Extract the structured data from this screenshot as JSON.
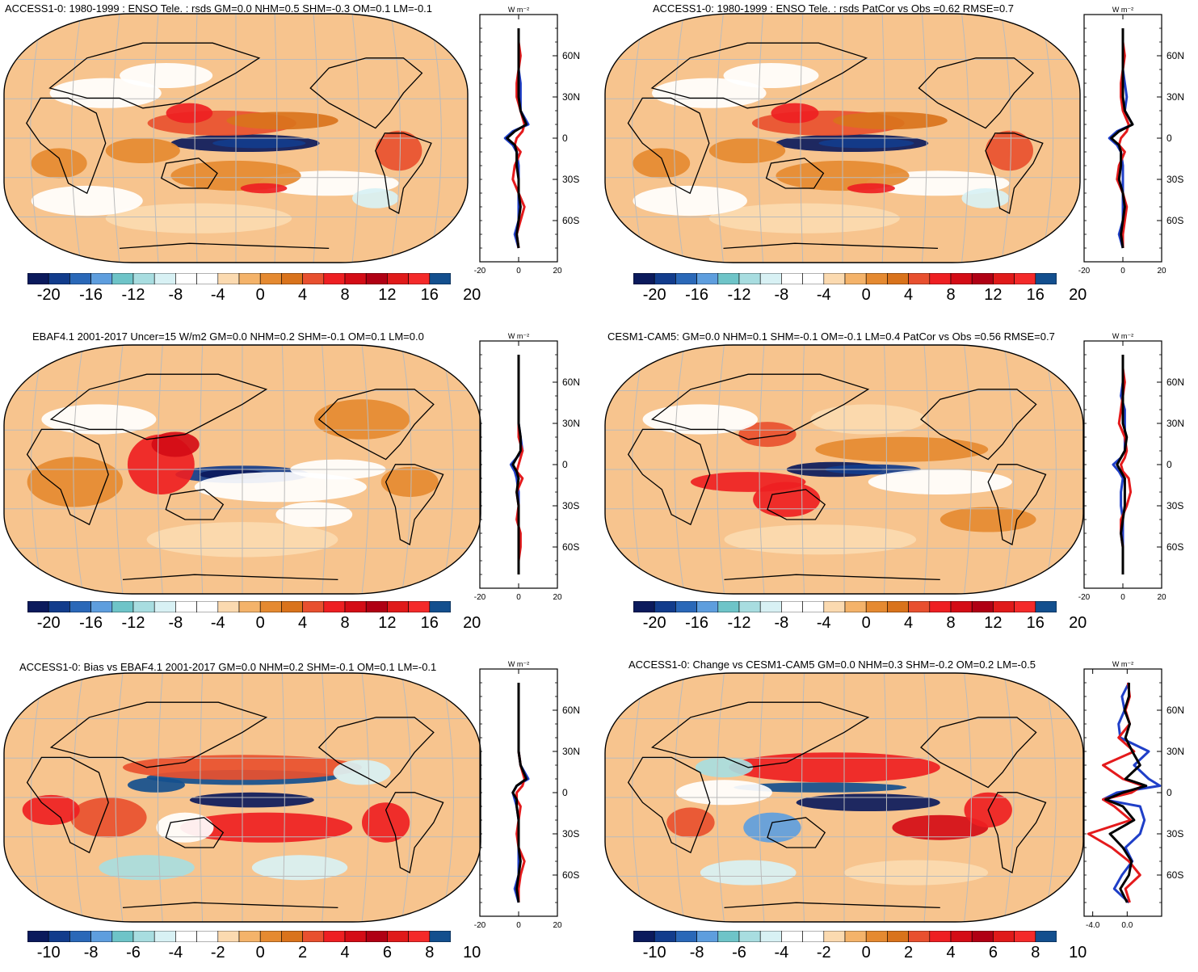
{
  "colors": {
    "scale": [
      "#0b1a5c",
      "#123c8c",
      "#2a68b8",
      "#5e9ede",
      "#6ec4c8",
      "#a8dde0",
      "#d8f1f4",
      "#ffffff",
      "#ffffff",
      "#fbdab0",
      "#f4b36a",
      "#e58a31",
      "#d9731c",
      "#e8502f",
      "#ee1f22",
      "#d40c16",
      "#b00014",
      "#e01a1a",
      "#f42a2a",
      "#134f8e"
    ],
    "land_outline": "#000000",
    "grid": "#bbbbbb",
    "line_black": "#000000",
    "line_red": "#e41a1c",
    "line_blue": "#1f3fc8"
  },
  "panels": [
    {
      "id": "p1",
      "title": "ACCESS1-0: 1980-1999 : ENSO Tele. : rsds GM=0.0 NHM=0.5 SHM=-0.3 OM=0.1 LM=-0.1",
      "cbar_labels": [
        "-20",
        "-16",
        "-12",
        "-8",
        "-4",
        "0",
        "4",
        "8",
        "12",
        "16",
        "20"
      ],
      "profile": {
        "units": "W m⁻²",
        "x_ticks": [
          "-20",
          "0",
          "20"
        ],
        "y_ticks": [
          "60N",
          "30N",
          "0",
          "30S",
          "60S"
        ],
        "xmin": -20,
        "xmax": 20,
        "lat": [
          -80,
          -70,
          -60,
          -50,
          -40,
          -30,
          -20,
          -10,
          -5,
          0,
          5,
          10,
          20,
          30,
          40,
          50,
          60,
          70,
          80
        ],
        "black": [
          0,
          -1,
          0,
          1,
          0,
          0,
          -1,
          -1,
          -2,
          -6,
          -2,
          4,
          1,
          0,
          0,
          0,
          0,
          0,
          0
        ],
        "red": [
          0,
          -1,
          1,
          3,
          0,
          -3,
          -2,
          1,
          -2,
          -1,
          2,
          3,
          1,
          -1,
          -1,
          0,
          1,
          0,
          0
        ],
        "blue": [
          0,
          -2,
          0,
          0,
          0,
          0,
          0,
          -1,
          -3,
          -7,
          -3,
          5,
          1,
          1,
          1,
          0,
          0,
          0,
          0
        ]
      }
    },
    {
      "id": "p2",
      "title": "ACCESS1-0: 1980-1999 : ENSO Tele. : rsds PatCor vs Obs =0.62 RMSE=0.7",
      "cbar_labels": [
        "-20",
        "-16",
        "-12",
        "-8",
        "-4",
        "0",
        "4",
        "8",
        "12",
        "16",
        "20"
      ],
      "profile": {
        "units": "W m⁻²",
        "x_ticks": [
          "-20",
          "0",
          "20"
        ],
        "y_ticks": [
          "60N",
          "30N",
          "0",
          "30S",
          "60S"
        ],
        "xmin": -20,
        "xmax": 20,
        "lat": [
          -80,
          -70,
          -60,
          -50,
          -40,
          -30,
          -20,
          -10,
          -5,
          0,
          5,
          10,
          20,
          30,
          40,
          50,
          60,
          70,
          80
        ],
        "black": [
          0,
          -1,
          0,
          1,
          0,
          -2,
          -1,
          -1,
          -2,
          -6,
          -2,
          5,
          1,
          0,
          0,
          0,
          0,
          0,
          0
        ],
        "red": [
          0,
          0,
          1,
          2,
          0,
          -3,
          -2,
          1,
          -2,
          -1,
          2,
          3,
          0,
          -1,
          -1,
          0,
          1,
          0,
          0
        ],
        "blue": [
          0,
          -2,
          0,
          0,
          0,
          0,
          0,
          -1,
          -3,
          -7,
          -3,
          5,
          1,
          2,
          1,
          0,
          0,
          0,
          0
        ]
      }
    },
    {
      "id": "p3",
      "title": "EBAF4.1 2001-2017 Uncer=15 W/m2 GM=0.0 NHM=0.2 SHM=-0.1 OM=0.1 LM=0.0",
      "cbar_labels": [
        "-20",
        "-16",
        "-12",
        "-8",
        "-4",
        "0",
        "4",
        "8",
        "12",
        "16",
        "20"
      ],
      "profile": {
        "units": "W m⁻²",
        "x_ticks": [
          "-20",
          "0",
          "20"
        ],
        "y_ticks": [
          "60N",
          "30N",
          "0",
          "30S",
          "60S"
        ],
        "xmin": -20,
        "xmax": 20,
        "lat": [
          -80,
          -70,
          -60,
          -50,
          -40,
          -30,
          -20,
          -10,
          -5,
          0,
          5,
          10,
          20,
          30,
          40,
          50,
          60,
          70,
          80
        ],
        "black": [
          0,
          0,
          0,
          0,
          0,
          0,
          -1,
          0,
          -1,
          -3,
          -1,
          1,
          1,
          0,
          0,
          0,
          0,
          0,
          0
        ],
        "red": [
          0,
          0,
          1,
          1,
          -1,
          0,
          -1,
          2,
          -1,
          0,
          1,
          2,
          0,
          0,
          0,
          0,
          0,
          0,
          0
        ],
        "blue": [
          0,
          0,
          0,
          0,
          0,
          0,
          0,
          -1,
          -2,
          -4,
          -1,
          2,
          1,
          0,
          0,
          0,
          0,
          0,
          0
        ]
      }
    },
    {
      "id": "p4",
      "title": "CESM1-CAM5: GM=0.0 NHM=0.1 SHM=-0.1 OM=-0.1 LM=0.4 PatCor vs Obs =0.56 RMSE=0.7",
      "cbar_labels": [
        "-20",
        "-16",
        "-12",
        "-8",
        "-4",
        "0",
        "4",
        "8",
        "12",
        "16",
        "20"
      ],
      "profile": {
        "units": "W m⁻²",
        "x_ticks": [
          "-20",
          "0",
          "20"
        ],
        "y_ticks": [
          "60N",
          "30N",
          "0",
          "30S",
          "60S"
        ],
        "xmin": -20,
        "xmax": 20,
        "lat": [
          -80,
          -70,
          -60,
          -50,
          -40,
          -30,
          -20,
          -10,
          -5,
          0,
          5,
          10,
          20,
          30,
          40,
          50,
          60,
          70,
          80
        ],
        "black": [
          0,
          0,
          0,
          -1,
          0,
          1,
          1,
          1,
          -1,
          -3,
          -1,
          1,
          2,
          0,
          0,
          0,
          0,
          0,
          0
        ],
        "red": [
          0,
          0,
          0,
          -1,
          -1,
          2,
          4,
          3,
          0,
          -1,
          1,
          2,
          1,
          -2,
          -1,
          0,
          1,
          0,
          0
        ],
        "blue": [
          0,
          0,
          0,
          0,
          0,
          -1,
          -1,
          0,
          -2,
          -5,
          -1,
          1,
          1,
          1,
          1,
          -1,
          0,
          0,
          0
        ]
      }
    },
    {
      "id": "p5",
      "title": "ACCESS1-0: Bias vs EBAF4.1 2001-2017 GM=0.0 NHM=0.2 SHM=-0.1 OM=0.1 LM=-0.1",
      "cbar_labels": [
        "-10",
        "-8",
        "-6",
        "-4",
        "-2",
        "0",
        "2",
        "4",
        "6",
        "8",
        "10"
      ],
      "profile": {
        "units": "W m⁻²",
        "x_ticks": [
          "-20",
          "0",
          "20"
        ],
        "y_ticks": [
          "60N",
          "30N",
          "0",
          "30S",
          "60S"
        ],
        "xmin": -20,
        "xmax": 20,
        "lat": [
          -80,
          -70,
          -60,
          -50,
          -40,
          -30,
          -20,
          -10,
          -5,
          0,
          5,
          10,
          20,
          30,
          40,
          50,
          60,
          70,
          80
        ],
        "black": [
          0,
          -1,
          0,
          1,
          0,
          0,
          0,
          -1,
          -1,
          -3,
          -1,
          4,
          1,
          0,
          0,
          0,
          0,
          0,
          0
        ],
        "red": [
          0,
          0,
          1,
          3,
          0,
          -1,
          0,
          1,
          -1,
          -1,
          2,
          3,
          1,
          0,
          0,
          0,
          0,
          0,
          0
        ],
        "blue": [
          0,
          -2,
          0,
          0,
          0,
          0,
          0,
          -1,
          -2,
          -3,
          -1,
          5,
          1,
          0,
          0,
          0,
          0,
          0,
          0
        ]
      }
    },
    {
      "id": "p6",
      "title": "ACCESS1-0: Change vs CESM1-CAM5 GM=0.0 NHM=0.3 SHM=-0.2 OM=0.2 LM=-0.5",
      "cbar_labels": [
        "-10",
        "-8",
        "-6",
        "-4",
        "-2",
        "0",
        "2",
        "4",
        "6",
        "8",
        "10"
      ],
      "profile": {
        "units": "W m⁻²",
        "x_ticks": [
          "-4.0",
          "0.0"
        ],
        "y_ticks": [
          "60N",
          "30N",
          "0",
          "30S",
          "60S"
        ],
        "xmin": -5,
        "xmax": 4,
        "lat": [
          -80,
          -70,
          -60,
          -50,
          -40,
          -30,
          -20,
          -10,
          -5,
          0,
          5,
          10,
          20,
          30,
          40,
          50,
          60,
          70,
          80
        ],
        "black": [
          0,
          -0.8,
          0.2,
          0.5,
          -0.5,
          -2.0,
          0.8,
          -0.5,
          -2.5,
          -0.5,
          2.2,
          -0.2,
          1.5,
          0.6,
          -0.2,
          0.3,
          -0.3,
          0.2,
          0.2
        ],
        "red": [
          0.3,
          -0.2,
          1.5,
          0.2,
          -1.8,
          -4.5,
          0.4,
          -1.5,
          -2.8,
          0.5,
          1.8,
          -0.5,
          -2.8,
          0.8,
          -1.0,
          0.3,
          -0.2,
          0.3,
          0.1
        ],
        "blue": [
          0.2,
          -1.5,
          -0.6,
          0.6,
          -0.2,
          1.5,
          2.0,
          1.5,
          -2.8,
          -1.2,
          3.8,
          2.5,
          0.8,
          2.5,
          -0.8,
          -1.0,
          -0.3,
          -0.6,
          0.2
        ]
      }
    }
  ]
}
